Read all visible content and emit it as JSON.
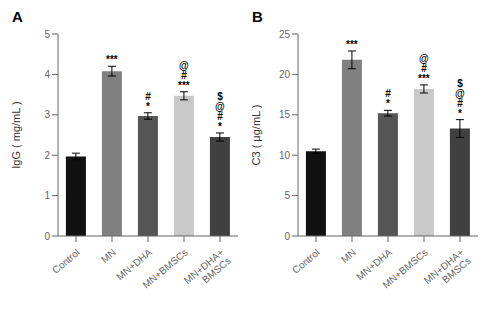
{
  "chart_data": [
    {
      "type": "bar",
      "title": "A",
      "ylabel": "IgG ( mg/mL )",
      "categories": [
        "Control",
        "MN",
        "MN+DHA",
        "MN+BMSCs",
        "MN+DHA+\nBMSCs"
      ],
      "values": [
        1.97,
        4.08,
        2.97,
        3.47,
        2.45
      ],
      "errors": [
        0.08,
        0.12,
        0.08,
        0.1,
        0.1
      ],
      "colors": [
        "#111111",
        "#808080",
        "#555555",
        "#c8c8c8",
        "#404040"
      ],
      "ylim": [
        0,
        5
      ],
      "yticks": [
        0,
        1,
        2,
        3,
        4,
        5
      ],
      "annotations": [
        {
          "category": "MN",
          "symbols": [
            "***"
          ]
        },
        {
          "category": "MN+DHA",
          "symbols": [
            "#",
            "*"
          ]
        },
        {
          "category": "MN+BMSCs",
          "symbols": [
            "@",
            "#",
            "***"
          ]
        },
        {
          "category": "MN+DHA+\nBMSCs",
          "symbols": [
            "$",
            "@",
            "#",
            "*"
          ]
        }
      ]
    },
    {
      "type": "bar",
      "title": "B",
      "ylabel": "C3 ( μg/mL )",
      "categories": [
        "Control",
        "MN",
        "MN+DHA",
        "MN+BMSCs",
        "MN+DHA+\nBMSCs"
      ],
      "values": [
        10.5,
        21.8,
        15.2,
        18.2,
        13.3
      ],
      "errors": [
        0.25,
        1.1,
        0.35,
        0.5,
        1.1
      ],
      "colors": [
        "#111111",
        "#808080",
        "#555555",
        "#c8c8c8",
        "#404040"
      ],
      "ylim": [
        0,
        25
      ],
      "yticks": [
        0,
        5,
        10,
        15,
        20,
        25
      ],
      "annotations": [
        {
          "category": "MN",
          "symbols": [
            "***"
          ]
        },
        {
          "category": "MN+DHA",
          "symbols": [
            "#",
            "*"
          ]
        },
        {
          "category": "MN+BMSCs",
          "symbols": [
            "@",
            "#",
            "***"
          ]
        },
        {
          "category": "MN+DHA+\nBMSCs",
          "symbols": [
            "$",
            "@",
            "#",
            "*"
          ]
        }
      ]
    }
  ]
}
